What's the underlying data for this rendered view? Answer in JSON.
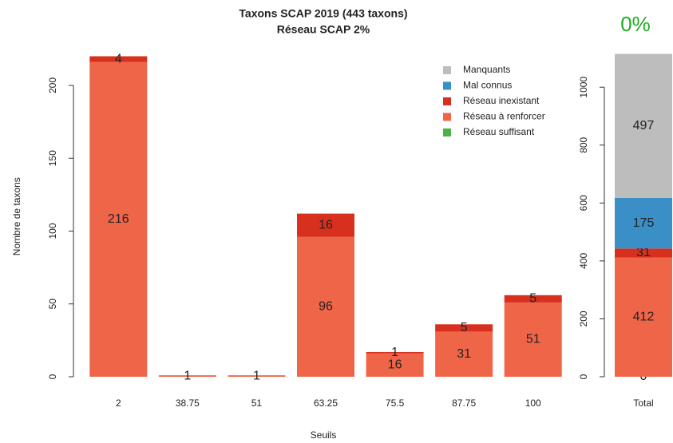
{
  "chart_data": [
    {
      "type": "bar",
      "stacked": true,
      "title": "Taxons SCAP 2019 (443 taxons)",
      "subtitle": "Réseau SCAP 2%",
      "xlabel": "Seuils",
      "ylabel": "Nombre de taxons",
      "categories": [
        "2",
        "38.75",
        "51",
        "63.25",
        "75.5",
        "87.75",
        "100"
      ],
      "series": [
        {
          "name": "Réseau suffisant",
          "color": "#4daf4a",
          "values": [
            0,
            0,
            0,
            0,
            0,
            0,
            0
          ]
        },
        {
          "name": "Réseau à renforcer",
          "color": "#ef6548",
          "values": [
            216,
            1,
            1,
            96,
            16,
            31,
            51
          ]
        },
        {
          "name": "Réseau inexistant",
          "color": "#d7301f",
          "values": [
            4,
            0,
            0,
            16,
            1,
            5,
            5
          ]
        },
        {
          "name": "Mal connus",
          "color": "#3a8fc6",
          "values": [
            0,
            0,
            0,
            0,
            0,
            0,
            0
          ]
        },
        {
          "name": "Manquants",
          "color": "#bdbdbd",
          "values": [
            0,
            0,
            0,
            0,
            0,
            0,
            0
          ]
        }
      ],
      "ylim": [
        0,
        220
      ],
      "yticks": [
        0,
        50,
        100,
        150,
        200
      ],
      "legend": "top-right",
      "zero_labels": false
    },
    {
      "type": "bar",
      "stacked": true,
      "title": "0%",
      "title_color": "#22aa22",
      "categories": [
        "Total"
      ],
      "series": [
        {
          "name": "Réseau suffisant",
          "color": "#4daf4a",
          "values": [
            0
          ]
        },
        {
          "name": "Réseau à renforcer",
          "color": "#ef6548",
          "values": [
            412
          ]
        },
        {
          "name": "Réseau inexistant",
          "color": "#d7301f",
          "values": [
            31
          ]
        },
        {
          "name": "Mal connus",
          "color": "#3a8fc6",
          "values": [
            175
          ]
        },
        {
          "name": "Manquants",
          "color": "#bdbdbd",
          "values": [
            497
          ]
        }
      ],
      "ylim": [
        0,
        1115
      ],
      "yticks": [
        0,
        200,
        400,
        600,
        800,
        1000
      ],
      "zero_labels": true
    }
  ]
}
